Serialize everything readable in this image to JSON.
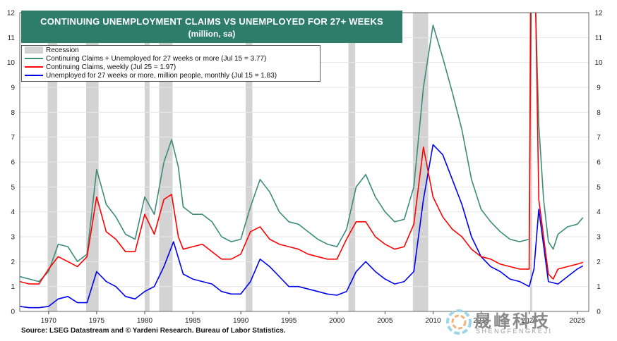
{
  "title": "CONTINUING UNEMPLOYMENT CLAIMS VS UNEMPLOYED FOR 27+ WEEKS",
  "subtitle": "(million, sa)",
  "source": "Source: LSEG Datastream and © Yardeni Research. Bureau of Labor Statistics.",
  "watermark": {
    "cn": "晟峰科技",
    "en": "SHENGFENGKEJI"
  },
  "colors": {
    "total": "#3c8c7a",
    "claims": "#ff0000",
    "unemp": "#0000ee",
    "recession": "#d3d3d3",
    "title_bg": "#2e7d6b"
  },
  "chart_data": {
    "type": "line",
    "x_range": [
      1967,
      2026.2
    ],
    "ylim": [
      0,
      12
    ],
    "x_ticks": [
      1970,
      1975,
      1980,
      1985,
      1990,
      1995,
      2000,
      2005,
      2010,
      2015,
      2020,
      2025
    ],
    "y_ticks": [
      0,
      1,
      2,
      3,
      4,
      5,
      6,
      7,
      8,
      9,
      10,
      11,
      12
    ],
    "recessions": [
      [
        1969.9,
        1970.9
      ],
      [
        1973.9,
        1975.2
      ],
      [
        1980.0,
        1980.5
      ],
      [
        1981.5,
        1982.9
      ],
      [
        1990.5,
        1991.2
      ],
      [
        2001.2,
        2001.9
      ],
      [
        2007.9,
        2009.5
      ],
      [
        2020.1,
        2020.3
      ]
    ],
    "legend": [
      {
        "key": "recession",
        "label": "Recession"
      },
      {
        "key": "total",
        "label": "Continuing Claims + Unemployed for 27 weeks or more (Jul 15 = 3.77)"
      },
      {
        "key": "claims",
        "label": "Continuing Claims, weekly (Jul 25 = 1.97)"
      },
      {
        "key": "unemp",
        "label": "Unemployed for 27 weeks or more, million people, monthly (Jul 15 = 1.83)"
      }
    ],
    "series": [
      {
        "key": "total",
        "values": [
          [
            1967,
            1.4
          ],
          [
            1968,
            1.3
          ],
          [
            1969,
            1.2
          ],
          [
            1970,
            1.6
          ],
          [
            1971,
            2.7
          ],
          [
            1972,
            2.6
          ],
          [
            1973,
            2.0
          ],
          [
            1974,
            2.3
          ],
          [
            1975,
            5.7
          ],
          [
            1976,
            4.3
          ],
          [
            1977,
            3.8
          ],
          [
            1978,
            3.1
          ],
          [
            1979,
            2.9
          ],
          [
            1980,
            4.6
          ],
          [
            1981,
            3.9
          ],
          [
            1982,
            6.0
          ],
          [
            1982.8,
            6.9
          ],
          [
            1983.5,
            5.8
          ],
          [
            1984,
            4.2
          ],
          [
            1985,
            3.9
          ],
          [
            1986,
            3.9
          ],
          [
            1987,
            3.6
          ],
          [
            1988,
            3.0
          ],
          [
            1989,
            2.8
          ],
          [
            1990,
            2.9
          ],
          [
            1991,
            4.2
          ],
          [
            1992,
            5.3
          ],
          [
            1993,
            4.8
          ],
          [
            1994,
            4.0
          ],
          [
            1995,
            3.6
          ],
          [
            1996,
            3.5
          ],
          [
            1997,
            3.2
          ],
          [
            1998,
            2.9
          ],
          [
            1999,
            2.7
          ],
          [
            2000,
            2.6
          ],
          [
            2001,
            3.3
          ],
          [
            2002,
            5.0
          ],
          [
            2003,
            5.5
          ],
          [
            2004,
            4.6
          ],
          [
            2005,
            4.0
          ],
          [
            2006,
            3.6
          ],
          [
            2007,
            3.7
          ],
          [
            2008,
            5.0
          ],
          [
            2009,
            9.0
          ],
          [
            2010,
            11.5
          ],
          [
            2011,
            10.2
          ],
          [
            2012,
            8.8
          ],
          [
            2013,
            7.3
          ],
          [
            2014,
            5.3
          ],
          [
            2015,
            4.1
          ],
          [
            2016,
            3.6
          ],
          [
            2017,
            3.2
          ],
          [
            2018,
            2.9
          ],
          [
            2019,
            2.8
          ],
          [
            2020,
            2.9
          ],
          [
            2020.3,
            16.5
          ],
          [
            2020.6,
            13.0
          ],
          [
            2021,
            7.5
          ],
          [
            2021.5,
            4.5
          ],
          [
            2022,
            2.8
          ],
          [
            2022.5,
            2.5
          ],
          [
            2023,
            3.1
          ],
          [
            2024,
            3.4
          ],
          [
            2025,
            3.5
          ],
          [
            2025.6,
            3.77
          ]
        ]
      },
      {
        "key": "claims",
        "values": [
          [
            1967,
            1.2
          ],
          [
            1968,
            1.1
          ],
          [
            1969,
            1.1
          ],
          [
            1970,
            1.7
          ],
          [
            1971,
            2.2
          ],
          [
            1972,
            2.0
          ],
          [
            1973,
            1.8
          ],
          [
            1974,
            2.2
          ],
          [
            1975,
            4.6
          ],
          [
            1976,
            3.2
          ],
          [
            1977,
            2.9
          ],
          [
            1978,
            2.4
          ],
          [
            1979,
            2.4
          ],
          [
            1980,
            3.9
          ],
          [
            1981,
            3.1
          ],
          [
            1982,
            4.5
          ],
          [
            1982.8,
            4.7
          ],
          [
            1983.5,
            3.0
          ],
          [
            1984,
            2.5
          ],
          [
            1985,
            2.6
          ],
          [
            1986,
            2.7
          ],
          [
            1987,
            2.4
          ],
          [
            1988,
            2.1
          ],
          [
            1989,
            2.1
          ],
          [
            1990,
            2.3
          ],
          [
            1991,
            3.2
          ],
          [
            1992,
            3.4
          ],
          [
            1993,
            2.9
          ],
          [
            1994,
            2.7
          ],
          [
            1995,
            2.6
          ],
          [
            1996,
            2.5
          ],
          [
            1997,
            2.3
          ],
          [
            1998,
            2.2
          ],
          [
            1999,
            2.1
          ],
          [
            2000,
            2.1
          ],
          [
            2001,
            2.9
          ],
          [
            2002,
            3.6
          ],
          [
            2003,
            3.6
          ],
          [
            2004,
            3.0
          ],
          [
            2005,
            2.7
          ],
          [
            2006,
            2.5
          ],
          [
            2007,
            2.6
          ],
          [
            2008,
            3.5
          ],
          [
            2009,
            6.6
          ],
          [
            2010,
            4.6
          ],
          [
            2011,
            3.8
          ],
          [
            2012,
            3.3
          ],
          [
            2013,
            3.0
          ],
          [
            2014,
            2.5
          ],
          [
            2015,
            2.2
          ],
          [
            2016,
            2.1
          ],
          [
            2017,
            1.9
          ],
          [
            2018,
            1.8
          ],
          [
            2019,
            1.7
          ],
          [
            2020,
            1.7
          ],
          [
            2020.3,
            24
          ],
          [
            2020.6,
            14.0
          ],
          [
            2021,
            4.5
          ],
          [
            2021.5,
            3.0
          ],
          [
            2022,
            1.5
          ],
          [
            2022.5,
            1.3
          ],
          [
            2023,
            1.7
          ],
          [
            2024,
            1.8
          ],
          [
            2025,
            1.9
          ],
          [
            2025.6,
            1.97
          ]
        ]
      },
      {
        "key": "unemp",
        "values": [
          [
            1967,
            0.2
          ],
          [
            1968,
            0.15
          ],
          [
            1969,
            0.15
          ],
          [
            1970,
            0.2
          ],
          [
            1971,
            0.5
          ],
          [
            1972,
            0.6
          ],
          [
            1973,
            0.35
          ],
          [
            1974,
            0.35
          ],
          [
            1975,
            1.6
          ],
          [
            1976,
            1.2
          ],
          [
            1977,
            1.0
          ],
          [
            1978,
            0.6
          ],
          [
            1979,
            0.5
          ],
          [
            1980,
            0.8
          ],
          [
            1981,
            1.0
          ],
          [
            1982,
            1.8
          ],
          [
            1983,
            2.8
          ],
          [
            1984,
            1.5
          ],
          [
            1985,
            1.3
          ],
          [
            1986,
            1.2
          ],
          [
            1987,
            1.1
          ],
          [
            1988,
            0.8
          ],
          [
            1989,
            0.7
          ],
          [
            1990,
            0.7
          ],
          [
            1991,
            1.2
          ],
          [
            1992,
            2.1
          ],
          [
            1993,
            1.8
          ],
          [
            1994,
            1.4
          ],
          [
            1995,
            1.0
          ],
          [
            1996,
            1.0
          ],
          [
            1997,
            0.9
          ],
          [
            1998,
            0.8
          ],
          [
            1999,
            0.7
          ],
          [
            2000,
            0.65
          ],
          [
            2001,
            0.8
          ],
          [
            2002,
            1.6
          ],
          [
            2003,
            2.0
          ],
          [
            2004,
            1.6
          ],
          [
            2005,
            1.3
          ],
          [
            2006,
            1.1
          ],
          [
            2007,
            1.2
          ],
          [
            2008,
            1.6
          ],
          [
            2009,
            4.5
          ],
          [
            2010,
            6.7
          ],
          [
            2011,
            6.3
          ],
          [
            2012,
            5.3
          ],
          [
            2013,
            4.3
          ],
          [
            2014,
            3.0
          ],
          [
            2015,
            2.2
          ],
          [
            2016,
            1.8
          ],
          [
            2017,
            1.6
          ],
          [
            2018,
            1.3
          ],
          [
            2019,
            1.2
          ],
          [
            2020,
            1.0
          ],
          [
            2020.5,
            1.7
          ],
          [
            2021,
            4.1
          ],
          [
            2022,
            1.2
          ],
          [
            2023,
            1.1
          ],
          [
            2024,
            1.4
          ],
          [
            2025,
            1.7
          ],
          [
            2025.6,
            1.83
          ]
        ]
      }
    ]
  }
}
